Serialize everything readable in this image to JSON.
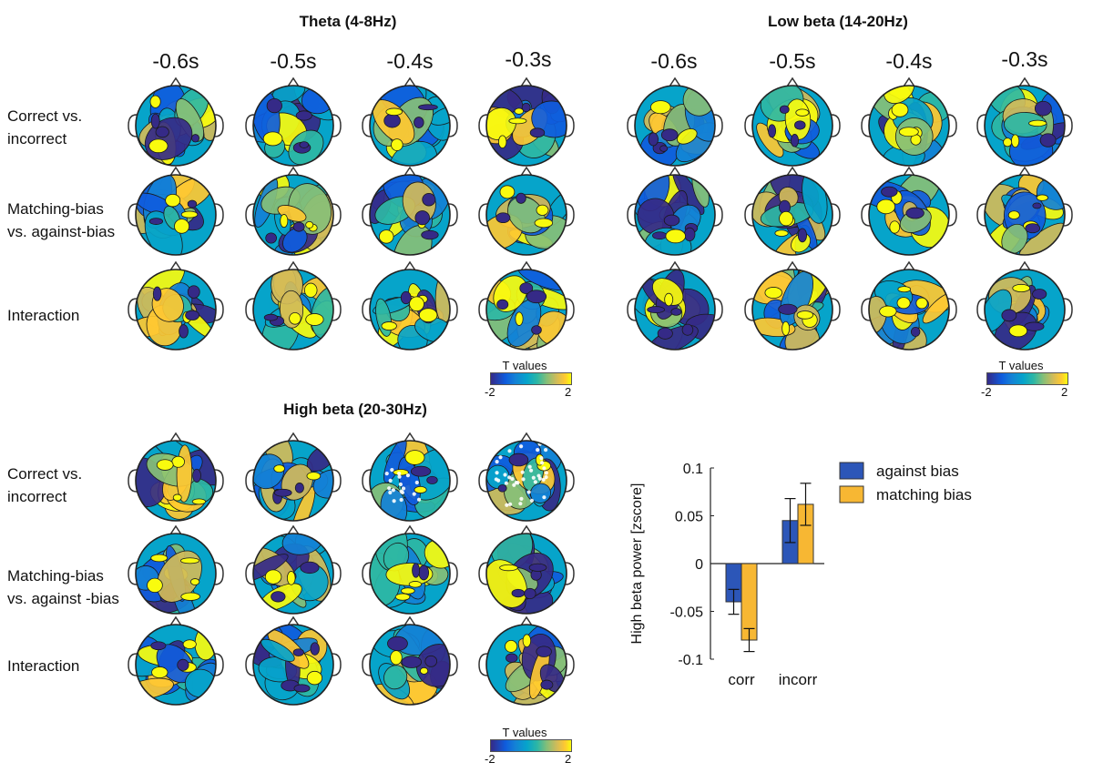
{
  "colors": {
    "cmap": [
      "#352a87",
      "#0f5cdd",
      "#1481d6",
      "#06a4ca",
      "#2eb7a4",
      "#87bf77",
      "#d1bb59",
      "#fec832",
      "#f9fb0e"
    ],
    "against_bias": "#2c56b8",
    "matching_bias": "#f7b733"
  },
  "panels": {
    "theta": {
      "title": "Theta (4-8Hz)",
      "times": [
        "-0.6s",
        "-0.5s",
        "-0.4s",
        "-0.3s"
      ],
      "rows": [
        "Correct vs. incorrect",
        "Matching-bias vs. against-bias",
        "Interaction"
      ],
      "colorbar": {
        "title": "T values",
        "min": "-2",
        "max": "2"
      }
    },
    "low_beta": {
      "title": "Low beta (14-20Hz)",
      "times": [
        "-0.6s",
        "-0.5s",
        "-0.4s",
        "-0.3s"
      ],
      "colorbar": {
        "title": "T values",
        "min": "-2",
        "max": "2"
      }
    },
    "high_beta": {
      "title": "High beta (20-30Hz)",
      "rows": [
        "Correct vs. incorrect",
        "Matching-bias vs. against -bias",
        "Interaction"
      ],
      "colorbar": {
        "title": "T values",
        "min": "-2",
        "max": "2"
      }
    }
  },
  "row_labels": {
    "theta": [
      [
        "Correct vs.",
        "incorrect"
      ],
      [
        "Matching-bias",
        "vs. against-bias"
      ],
      [
        "Interaction"
      ]
    ],
    "high_beta": [
      [
        "Correct vs.",
        "incorrect"
      ],
      [
        "Matching-bias",
        "vs. against -bias"
      ],
      [
        "Interaction"
      ]
    ]
  },
  "chart_data": {
    "type": "bar",
    "ylabel": "High beta power [zscore]",
    "xlabel": "",
    "categories": [
      "corr",
      "incorr"
    ],
    "ylim": [
      -0.1,
      0.1
    ],
    "yticks": [
      0.1,
      0.05,
      0,
      -0.05,
      -0.1
    ],
    "ytick_labels": [
      "0.1",
      "0.05",
      "0",
      "-0.05",
      "-0.1"
    ],
    "series": [
      {
        "name": "against bias",
        "values": [
          -0.04,
          0.045
        ],
        "errors": [
          0.013,
          0.023
        ]
      },
      {
        "name": "matching bias",
        "values": [
          -0.08,
          0.062
        ],
        "errors": [
          0.012,
          0.022
        ]
      }
    ],
    "legend": "top-right"
  }
}
